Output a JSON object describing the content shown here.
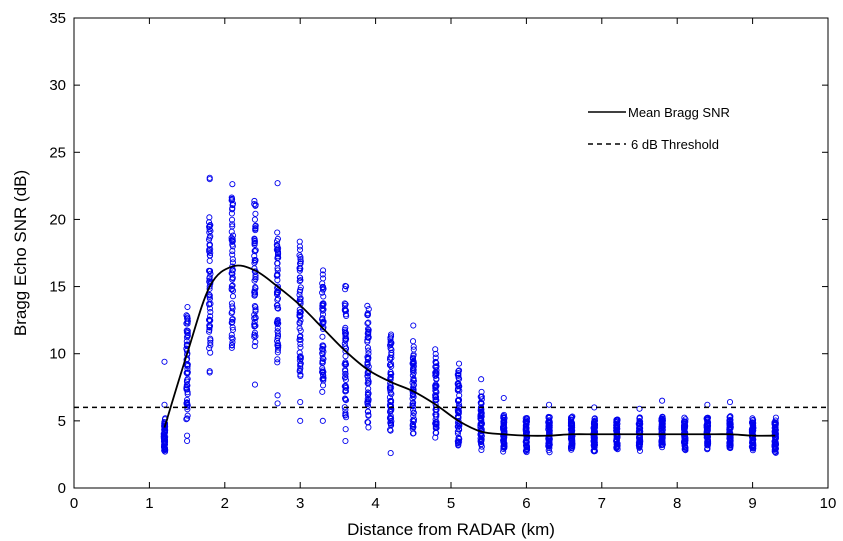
{
  "chart_data": {
    "type": "scatter",
    "title": "",
    "xlabel": "Distance from RADAR (km)",
    "ylabel": "Bragg Echo SNR (dB)",
    "xlim": [
      0,
      10
    ],
    "ylim": [
      0,
      35
    ],
    "xticks": [
      "0",
      "1",
      "2",
      "3",
      "4",
      "5",
      "6",
      "7",
      "8",
      "9",
      "10"
    ],
    "yticks": [
      "0",
      "5",
      "10",
      "15",
      "20",
      "25",
      "30",
      "35"
    ],
    "grid": false,
    "legend_position": "top-right",
    "colors": {
      "scatter": "#0000ee",
      "mean_line": "#000000",
      "threshold": "#000000"
    },
    "series": [
      {
        "name": "Mean Bragg SNR",
        "kind": "line",
        "style": "solid",
        "x": [
          1.2,
          1.5,
          1.8,
          2.1,
          2.4,
          2.7,
          3.0,
          3.3,
          3.6,
          3.9,
          4.2,
          4.5,
          4.8,
          5.1,
          5.4,
          5.7,
          6.0,
          6.3,
          6.6,
          6.9,
          7.2,
          7.5,
          7.8,
          8.1,
          8.4,
          8.7,
          9.0,
          9.3
        ],
        "y": [
          4.5,
          10.0,
          15.0,
          16.5,
          16.2,
          15.0,
          13.6,
          11.9,
          10.2,
          8.8,
          7.9,
          7.2,
          6.2,
          5.0,
          4.2,
          4.0,
          3.9,
          3.9,
          4.0,
          4.0,
          4.0,
          4.0,
          4.0,
          4.0,
          4.0,
          4.0,
          3.9,
          3.9
        ]
      },
      {
        "name": "6 dB Threshold",
        "kind": "line",
        "style": "dashed",
        "x": [
          0,
          10
        ],
        "y": [
          6,
          6
        ]
      },
      {
        "name": "",
        "kind": "scatter",
        "bins": [
          {
            "x": 1.2,
            "min": 2.5,
            "max": 5.3,
            "outliers": [
              6.2,
              9.4
            ]
          },
          {
            "x": 1.5,
            "min": 4.5,
            "max": 13.8,
            "outliers": [
              3.5,
              3.9
            ]
          },
          {
            "x": 1.8,
            "min": 9.5,
            "max": 21.0,
            "outliers": [
              8.6,
              8.7,
              23.0,
              23.1
            ]
          },
          {
            "x": 2.1,
            "min": 9.6,
            "max": 22.8,
            "outliers": []
          },
          {
            "x": 2.4,
            "min": 9.8,
            "max": 21.7,
            "outliers": [
              7.7
            ]
          },
          {
            "x": 2.7,
            "min": 8.5,
            "max": 20.0,
            "outliers": [
              6.3,
              6.9,
              22.7
            ]
          },
          {
            "x": 3.0,
            "min": 7.5,
            "max": 19.0,
            "outliers": [
              5.0,
              6.4
            ]
          },
          {
            "x": 3.3,
            "min": 6.5,
            "max": 16.7,
            "outliers": [
              5.0
            ]
          },
          {
            "x": 3.6,
            "min": 4.2,
            "max": 15.3,
            "outliers": [
              3.5
            ]
          },
          {
            "x": 3.9,
            "min": 4.0,
            "max": 14.1,
            "outliers": []
          },
          {
            "x": 4.2,
            "min": 3.5,
            "max": 12.0,
            "outliers": [
              2.6
            ]
          },
          {
            "x": 4.5,
            "min": 3.5,
            "max": 11.0,
            "outliers": [
              12.1
            ]
          },
          {
            "x": 4.8,
            "min": 3.2,
            "max": 10.5,
            "outliers": []
          },
          {
            "x": 5.1,
            "min": 2.5,
            "max": 9.6,
            "outliers": []
          },
          {
            "x": 5.4,
            "min": 2.6,
            "max": 7.2,
            "outliers": [
              8.1
            ]
          },
          {
            "x": 5.7,
            "min": 2.6,
            "max": 5.6,
            "outliers": [
              6.7
            ]
          },
          {
            "x": 6.0,
            "min": 2.6,
            "max": 5.4,
            "outliers": []
          },
          {
            "x": 6.3,
            "min": 2.6,
            "max": 5.5,
            "outliers": [
              6.2
            ]
          },
          {
            "x": 6.6,
            "min": 2.7,
            "max": 5.4,
            "outliers": []
          },
          {
            "x": 6.9,
            "min": 2.6,
            "max": 5.4,
            "outliers": [
              6.0
            ]
          },
          {
            "x": 7.2,
            "min": 2.7,
            "max": 5.3,
            "outliers": []
          },
          {
            "x": 7.5,
            "min": 2.7,
            "max": 5.4,
            "outliers": [
              5.9
            ]
          },
          {
            "x": 7.8,
            "min": 2.8,
            "max": 5.5,
            "outliers": [
              6.5
            ]
          },
          {
            "x": 8.1,
            "min": 2.7,
            "max": 5.3,
            "outliers": []
          },
          {
            "x": 8.4,
            "min": 2.8,
            "max": 5.5,
            "outliers": [
              6.2
            ]
          },
          {
            "x": 8.7,
            "min": 2.8,
            "max": 5.4,
            "outliers": [
              6.4
            ]
          },
          {
            "x": 9.0,
            "min": 2.7,
            "max": 5.3,
            "outliers": []
          },
          {
            "x": 9.3,
            "min": 2.4,
            "max": 5.3,
            "outliers": []
          }
        ]
      }
    ]
  }
}
